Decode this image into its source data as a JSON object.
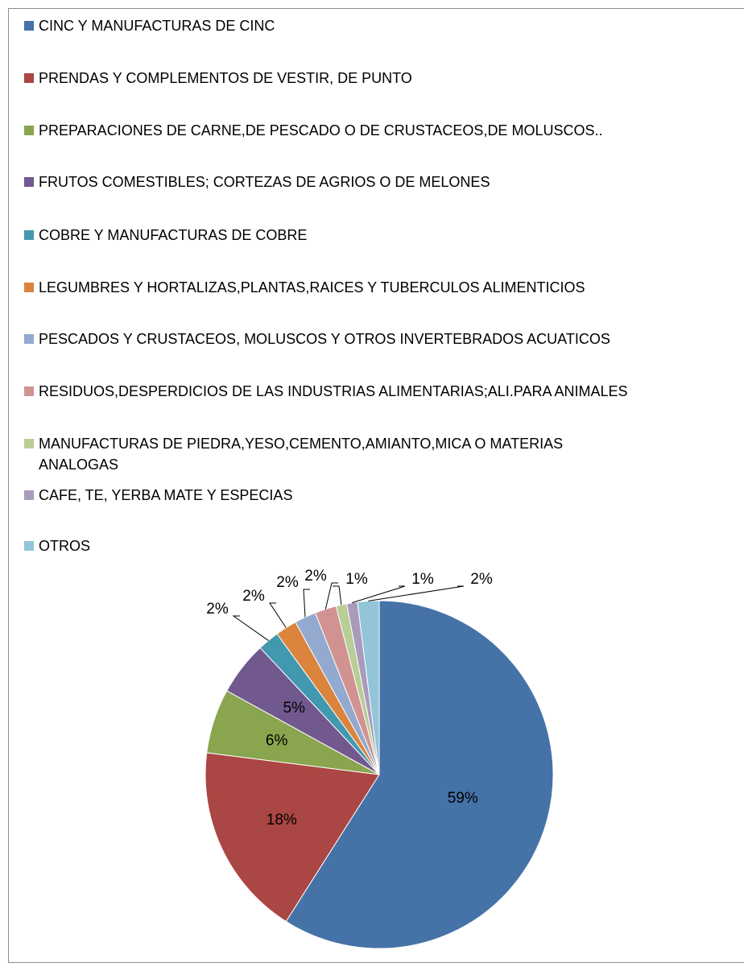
{
  "chart_data": {
    "type": "pie",
    "categories": [
      "CINC Y MANUFACTURAS DE CINC",
      "PRENDAS Y COMPLEMENTOS DE VESTIR, DE PUNTO",
      "PREPARACIONES DE CARNE,DE PESCADO O DE CRUSTACEOS,DE MOLUSCOS..",
      "FRUTOS COMESTIBLES; CORTEZAS DE AGRIOS O DE MELONES",
      "COBRE Y MANUFACTURAS DE COBRE",
      "LEGUMBRES Y HORTALIZAS,PLANTAS,RAICES Y TUBERCULOS ALIMENTICIOS",
      "PESCADOS Y CRUSTACEOS, MOLUSCOS Y OTROS INVERTEBRADOS ACUATICOS",
      "RESIDUOS,DESPERDICIOS DE LAS INDUSTRIAS ALIMENTARIAS;ALI.PARA ANIMALES",
      "MANUFACTURAS DE PIEDRA,YESO,CEMENTO,AMIANTO,MICA O MATERIAS ANALOGAS",
      "CAFE, TE, YERBA MATE Y ESPECIAS",
      "OTROS"
    ],
    "values": [
      59,
      18,
      6,
      5,
      2,
      2,
      2,
      2,
      1,
      1,
      2
    ],
    "value_labels": [
      "59%",
      "18%",
      "6%",
      "5%",
      "2%",
      "2%",
      "2%",
      "2%",
      "1%",
      "1%",
      "2%"
    ],
    "colors": [
      "#4572A7",
      "#AA4643",
      "#89A54E",
      "#71588F",
      "#4198AF",
      "#DB843D",
      "#93A9CF",
      "#D19392",
      "#B9CD96",
      "#A99BBD",
      "#92C5D8"
    ],
    "legend": "top"
  }
}
